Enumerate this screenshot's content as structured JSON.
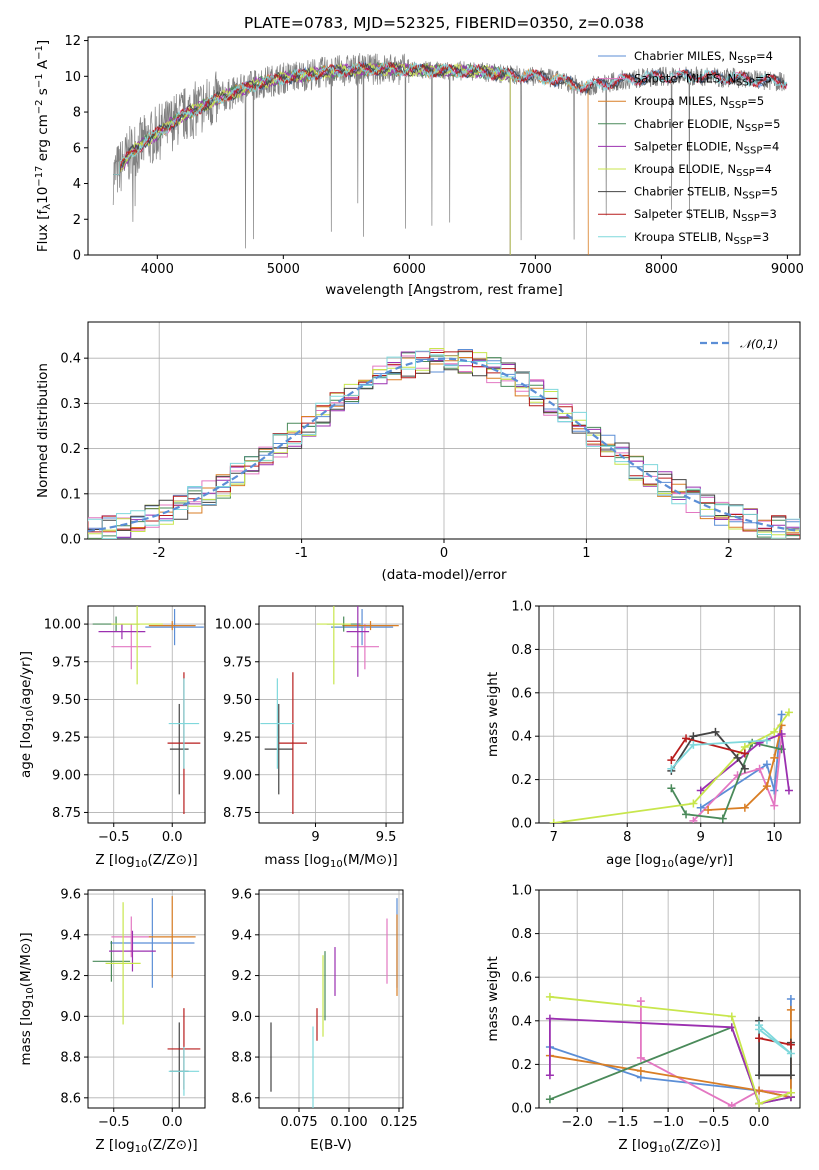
{
  "colors": {
    "Chabrier MILES": "#5b8ed6",
    "Salpeter MILES": "#e377c2",
    "Kroupa MILES": "#d97e25",
    "Chabrier ELODIE": "#4a8a5a",
    "Salpeter ELODIE": "#9b30b0",
    "Kroupa ELODIE": "#c8e64c",
    "Chabrier STELIB": "#444444",
    "Salpeter STELIB": "#b71c1c",
    "Kroupa STELIB": "#7fd8dc"
  },
  "chart_data": [
    {
      "id": "spectrum",
      "type": "line",
      "title": "PLATE=0783, MJD=52325, FIBERID=0350, z=0.038",
      "xlabel": "wavelength [Angstrom, rest frame]",
      "ylabel": "Flux [f_λ10^-17 erg cm^-2 s^-1 A^-1]",
      "xlim": [
        3450,
        9100
      ],
      "ylim": [
        0,
        12.2
      ],
      "xticks": [
        4000,
        5000,
        6000,
        7000,
        8000,
        9000
      ],
      "yticks": [
        0,
        2,
        4,
        6,
        8,
        10,
        12
      ],
      "legend_position": "upper right",
      "data_color": "#808080",
      "data_envelope": {
        "x": [
          3650,
          3800,
          4000,
          4200,
          4500,
          4800,
          5000,
          5300,
          5600,
          5900,
          6200,
          6500,
          6800,
          7100,
          7400,
          7700,
          8000,
          8300,
          8600,
          8900
        ],
        "y": [
          4.4,
          5.8,
          6.8,
          7.8,
          8.8,
          9.6,
          9.9,
          10.2,
          10.4,
          10.4,
          10.3,
          10.3,
          10.1,
          9.9,
          9.4,
          9.8,
          10.0,
          10.0,
          9.9,
          9.7
        ]
      },
      "series": [
        {
          "name": "Chabrier MILES",
          "nssp": "4"
        },
        {
          "name": "Salpeter MILES",
          "nssp": "5"
        },
        {
          "name": "Kroupa MILES",
          "nssp": "5"
        },
        {
          "name": "Chabrier ELODIE",
          "nssp": "5"
        },
        {
          "name": "Salpeter ELODIE",
          "nssp": "4"
        },
        {
          "name": "Kroupa ELODIE",
          "nssp": "4"
        },
        {
          "name": "Chabrier STELIB",
          "nssp": "5"
        },
        {
          "name": "Salpeter STELIB",
          "nssp": "3"
        },
        {
          "name": "Kroupa STELIB",
          "nssp": "3"
        }
      ],
      "model_ends": {
        "Chabrier MILES": 9000,
        "Salpeter MILES": 9000,
        "Kroupa MILES": 7420,
        "Chabrier ELODIE": 6800,
        "Salpeter ELODIE": 6800,
        "Kroupa ELODIE": 6800,
        "Chabrier STELIB": 9000,
        "Salpeter STELIB": 9000,
        "Kroupa STELIB": 9000
      }
    },
    {
      "id": "residuals",
      "type": "histogram",
      "xlabel": "(data-model)/error",
      "ylabel": "Normed distribution",
      "xlim": [
        -2.5,
        2.5
      ],
      "ylim": [
        0,
        0.48
      ],
      "xticks": [
        -2,
        -1,
        0,
        1,
        2
      ],
      "yticks": [
        0.0,
        0.1,
        0.2,
        0.3,
        0.4
      ],
      "bin_width": 0.1,
      "legend": "𝒩(0,1)",
      "legend_position": "upper right",
      "gaussian": {
        "mean": 0,
        "sigma": 1,
        "color": "#5b8ed6"
      }
    },
    {
      "id": "age-vs-Z",
      "type": "errorbar",
      "xlabel": "Z [log10(Z/Z⊙)]",
      "ylabel": "age  [log10(age/yr)]",
      "xlim": [
        -0.72,
        0.28
      ],
      "ylim": [
        8.68,
        10.12
      ],
      "xticks": [
        -0.5,
        0.0
      ],
      "xticklabels": [
        "−0.5",
        "0.0"
      ],
      "yticks": [
        8.75,
        9.0,
        9.25,
        9.5,
        9.75,
        10.0
      ],
      "points": [
        {
          "series": "Chabrier MILES",
          "x": 0.02,
          "y": 9.98,
          "xerr": 0.25,
          "yerr": 0.12
        },
        {
          "series": "Salpeter MILES",
          "x": -0.35,
          "y": 9.85,
          "xerr": 0.17,
          "yerr": 0.15
        },
        {
          "series": "Kroupa MILES",
          "x": 0.0,
          "y": 9.99,
          "xerr": 0.2,
          "yerr": 0.03
        },
        {
          "series": "Chabrier ELODIE",
          "x": -0.48,
          "y": 10.0,
          "xerr": 0.2,
          "yerr": 0.05
        },
        {
          "series": "Salpeter ELODIE",
          "x": -0.43,
          "y": 9.95,
          "xerr": 0.2,
          "yerr": 0.05
        },
        {
          "series": "Kroupa ELODIE",
          "x": -0.3,
          "y": 10.0,
          "xerr": 0.22,
          "yerr": 0.4
        },
        {
          "series": "Chabrier STELIB",
          "x": 0.06,
          "y": 9.17,
          "xerr": 0.08,
          "yerr": 0.3
        },
        {
          "series": "Salpeter STELIB",
          "x": 0.1,
          "y": 9.21,
          "xerr": 0.14,
          "yerr": 0.47
        },
        {
          "series": "Kroupa STELIB",
          "x": 0.1,
          "y": 9.34,
          "xerr": 0.13,
          "yerr": 0.3
        }
      ]
    },
    {
      "id": "age-vs-mass",
      "type": "errorbar",
      "xlabel": "mass [log10(M/M⊙)]",
      "xlim": [
        8.6,
        9.62
      ],
      "ylim": [
        8.68,
        10.12
      ],
      "xticks": [
        9.0,
        9.5
      ],
      "yticks": [
        8.75,
        9.0,
        9.25,
        9.5,
        9.75,
        10.0
      ],
      "points": [
        {
          "series": "Chabrier MILES",
          "x": 9.33,
          "y": 9.98,
          "xerr": 0.22,
          "yerr": 0.12
        },
        {
          "series": "Salpeter MILES",
          "x": 9.35,
          "y": 9.85,
          "xerr": 0.1,
          "yerr": 0.15
        },
        {
          "series": "Kroupa MILES",
          "x": 9.39,
          "y": 9.99,
          "xerr": 0.2,
          "yerr": 0.03
        },
        {
          "series": "Chabrier ELODIE",
          "x": 9.2,
          "y": 10.0,
          "xerr": 0.12,
          "yerr": 0.05
        },
        {
          "series": "Salpeter ELODIE",
          "x": 9.3,
          "y": 9.95,
          "xerr": 0.08,
          "yerr": 0.3
        },
        {
          "series": "Kroupa ELODIE",
          "x": 9.13,
          "y": 10.0,
          "xerr": 0.12,
          "yerr": 0.4
        },
        {
          "series": "Chabrier STELIB",
          "x": 8.74,
          "y": 9.17,
          "xerr": 0.1,
          "yerr": 0.3
        },
        {
          "series": "Salpeter STELIB",
          "x": 8.84,
          "y": 9.21,
          "xerr": 0.1,
          "yerr": 0.47
        },
        {
          "series": "Kroupa STELIB",
          "x": 8.73,
          "y": 9.34,
          "xerr": 0.12,
          "yerr": 0.3
        }
      ]
    },
    {
      "id": "weight-vs-age",
      "type": "line",
      "xlabel": "age  [log10(age/yr)]",
      "ylabel": "mass weight",
      "xlim": [
        6.8,
        10.35
      ],
      "ylim": [
        0,
        1.0
      ],
      "xticks": [
        7,
        8,
        9,
        10
      ],
      "yticks": [
        0.0,
        0.2,
        0.4,
        0.6,
        0.8,
        1.0
      ],
      "series": [
        {
          "name": "Chabrier MILES",
          "x": [
            9.0,
            9.9,
            10.0,
            10.1
          ],
          "y": [
            0.07,
            0.27,
            0.15,
            0.5
          ]
        },
        {
          "name": "Salpeter MILES",
          "x": [
            8.9,
            9.5,
            9.8,
            10.0,
            10.1
          ],
          "y": [
            0.01,
            0.22,
            0.25,
            0.08,
            0.4
          ]
        },
        {
          "name": "Kroupa MILES",
          "x": [
            9.1,
            9.6,
            9.9,
            10.0,
            10.1
          ],
          "y": [
            0.06,
            0.07,
            0.17,
            0.3,
            0.45
          ]
        },
        {
          "name": "Chabrier ELODIE",
          "x": [
            8.6,
            8.8,
            9.3,
            9.7,
            10.1
          ],
          "y": [
            0.16,
            0.04,
            0.02,
            0.37,
            0.34
          ]
        },
        {
          "name": "Salpeter ELODIE",
          "x": [
            9.0,
            9.8,
            10.1,
            10.2
          ],
          "y": [
            0.15,
            0.37,
            0.41,
            0.15
          ]
        },
        {
          "name": "Kroupa ELODIE",
          "x": [
            7.0,
            8.9,
            9.6,
            10.0,
            10.2
          ],
          "y": [
            0.0,
            0.09,
            0.35,
            0.42,
            0.51
          ]
        },
        {
          "name": "Chabrier STELIB",
          "x": [
            8.6,
            8.9,
            9.2,
            9.5,
            9.6
          ],
          "y": [
            0.24,
            0.4,
            0.42,
            0.3,
            0.25
          ]
        },
        {
          "name": "Salpeter STELIB",
          "x": [
            8.6,
            8.8,
            9.6
          ],
          "y": [
            0.29,
            0.39,
            0.32
          ]
        },
        {
          "name": "Kroupa STELIB",
          "x": [
            8.6,
            8.9,
            9.9
          ],
          "y": [
            0.25,
            0.36,
            0.38
          ]
        }
      ]
    },
    {
      "id": "mass-vs-Z",
      "type": "errorbar",
      "xlabel": "Z [log10(Z/Z⊙)]",
      "ylabel": "mass [log10(M/M⊙)]",
      "xlim": [
        -0.72,
        0.28
      ],
      "ylim": [
        8.55,
        9.62
      ],
      "xticks": [
        -0.5,
        0.0
      ],
      "xticklabels": [
        "−0.5",
        "0.0"
      ],
      "yticks": [
        8.6,
        8.8,
        9.0,
        9.2,
        9.4,
        9.6
      ],
      "points": [
        {
          "series": "Chabrier MILES",
          "x": -0.17,
          "y": 9.36,
          "xerr": 0.36,
          "yerr": 0.22
        },
        {
          "series": "Salpeter MILES",
          "x": -0.35,
          "y": 9.39,
          "xerr": 0.17,
          "yerr": 0.1
        },
        {
          "series": "Kroupa MILES",
          "x": 0.0,
          "y": 9.39,
          "xerr": 0.2,
          "yerr": 0.2
        },
        {
          "series": "Chabrier ELODIE",
          "x": -0.52,
          "y": 9.27,
          "xerr": 0.16,
          "yerr": 0.1
        },
        {
          "series": "Salpeter ELODIE",
          "x": -0.34,
          "y": 9.32,
          "xerr": 0.2,
          "yerr": 0.1
        },
        {
          "series": "Kroupa ELODIE",
          "x": -0.42,
          "y": 9.26,
          "xerr": 0.15,
          "yerr": 0.3
        },
        {
          "series": "Chabrier STELIB",
          "x": 0.06,
          "y": 8.73,
          "xerr": 0.08,
          "yerr": 0.24
        },
        {
          "series": "Salpeter STELIB",
          "x": 0.1,
          "y": 8.84,
          "xerr": 0.14,
          "yerr": 0.2
        },
        {
          "series": "Kroupa STELIB",
          "x": 0.1,
          "y": 8.73,
          "xerr": 0.13,
          "yerr": 0.12
        }
      ]
    },
    {
      "id": "mass-vs-EBV",
      "type": "errorbar",
      "xlabel": "E(B-V)",
      "xlim": [
        0.055,
        0.127
      ],
      "ylim": [
        8.55,
        9.62
      ],
      "xticks": [
        0.075,
        0.1,
        0.125
      ],
      "xticklabels": [
        "0.075",
        "0.100",
        "0.125"
      ],
      "yticks": [
        8.6,
        8.8,
        9.0,
        9.2,
        9.4,
        9.6
      ],
      "points": [
        {
          "series": "Chabrier MILES",
          "x": 0.124,
          "y": 9.36,
          "yerr": 0.22
        },
        {
          "series": "Salpeter MILES",
          "x": 0.119,
          "y": 9.32,
          "yerr": 0.16
        },
        {
          "series": "Kroupa MILES",
          "x": 0.124,
          "y": 9.3,
          "yerr": 0.2
        },
        {
          "series": "Chabrier ELODIE",
          "x": 0.088,
          "y": 9.15,
          "yerr": 0.17
        },
        {
          "series": "Salpeter ELODIE",
          "x": 0.093,
          "y": 9.22,
          "yerr": 0.12
        },
        {
          "series": "Kroupa ELODIE",
          "x": 0.087,
          "y": 9.1,
          "yerr": 0.2
        },
        {
          "series": "Chabrier STELIB",
          "x": 0.061,
          "y": 8.8,
          "yerr": 0.17
        },
        {
          "series": "Salpeter STELIB",
          "x": 0.084,
          "y": 8.96,
          "yerr": 0.08
        },
        {
          "series": "Kroupa STELIB",
          "x": 0.082,
          "y": 8.75,
          "yerr": 0.2
        }
      ]
    },
    {
      "id": "weight-vs-Z",
      "type": "line",
      "xlabel": "Z [log10(Z/Z⊙)]",
      "ylabel": "mass weight",
      "xlim": [
        -2.42,
        0.45
      ],
      "ylim": [
        0,
        1.0
      ],
      "xticks": [
        -2.0,
        -1.5,
        -1.0,
        -0.5,
        0.0
      ],
      "xticklabels": [
        "−2.0",
        "−1.5",
        "−1.0",
        "−0.5",
        "0.0"
      ],
      "yticks": [
        0.0,
        0.2,
        0.4,
        0.6,
        0.8,
        1.0
      ],
      "series": [
        {
          "name": "Chabrier MILES",
          "x": [
            -2.3,
            -1.3,
            0.0,
            0.35,
            0.35
          ],
          "y": [
            0.28,
            0.14,
            0.08,
            0.05,
            0.5
          ]
        },
        {
          "name": "Salpeter MILES",
          "x": [
            -1.3,
            -1.3,
            -0.3,
            0.0,
            0.35
          ],
          "y": [
            0.49,
            0.23,
            0.01,
            0.08,
            0.07
          ]
        },
        {
          "name": "Kroupa MILES",
          "x": [
            -2.3,
            -1.3,
            0.0,
            0.35,
            0.35
          ],
          "y": [
            0.24,
            0.17,
            0.08,
            0.05,
            0.45
          ]
        },
        {
          "name": "Chabrier ELODIE",
          "x": [
            -2.3,
            -0.3,
            0.0,
            0.35
          ],
          "y": [
            0.04,
            0.37,
            0.02,
            0.05
          ]
        },
        {
          "name": "Salpeter ELODIE",
          "x": [
            -2.3,
            -2.3,
            -0.3,
            0.0,
            0.35
          ],
          "y": [
            0.15,
            0.41,
            0.37,
            0.02,
            0.05
          ]
        },
        {
          "name": "Kroupa ELODIE",
          "x": [
            -2.3,
            -0.3,
            0.0,
            0.35
          ],
          "y": [
            0.51,
            0.42,
            0.02,
            0.07
          ]
        },
        {
          "name": "Chabrier STELIB",
          "x": [
            0.0,
            0.0,
            0.35,
            0.35
          ],
          "y": [
            0.4,
            0.15,
            0.15,
            0.3
          ]
        },
        {
          "name": "Salpeter STELIB",
          "x": [
            0.0,
            0.35
          ],
          "y": [
            0.32,
            0.29
          ]
        },
        {
          "name": "Kroupa STELIB",
          "x": [
            0.0,
            0.35,
            0.0
          ],
          "y": [
            0.36,
            0.25,
            0.38
          ]
        }
      ]
    }
  ]
}
